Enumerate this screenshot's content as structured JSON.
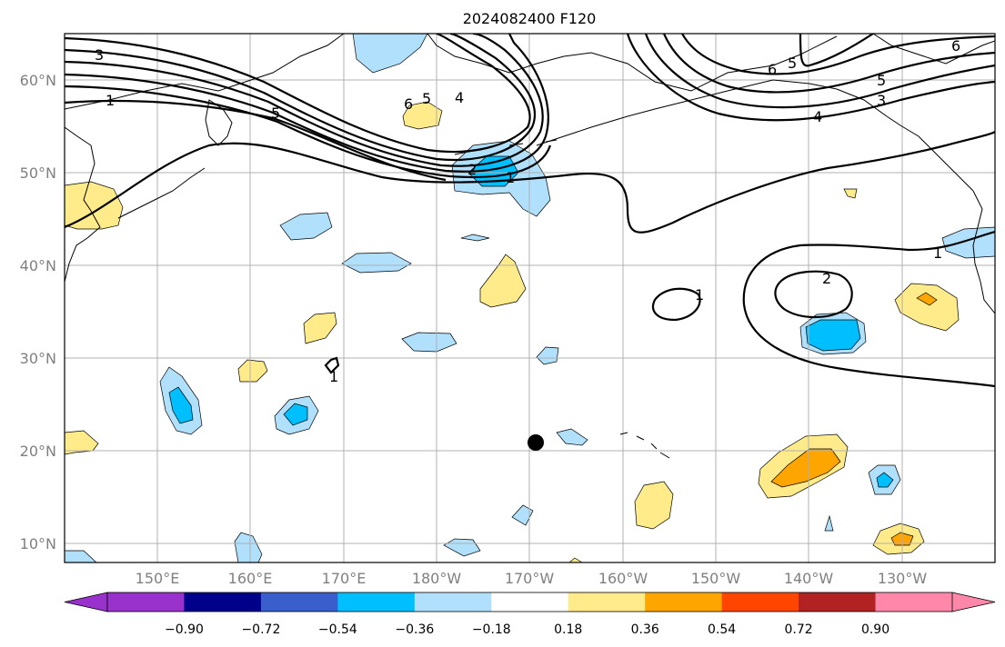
{
  "title": "2024082400 F120",
  "lat_labels": [
    "60°N",
    "50°N",
    "40°N",
    "30°N",
    "20°N",
    "10°N"
  ],
  "lon_labels": [
    "150°E",
    "160°E",
    "170°E",
    "180°W",
    "170°W",
    "160°W",
    "150°W",
    "140°W",
    "130°W"
  ],
  "colorbar": {
    "labels": [
      "−0.90",
      "−0.72",
      "−0.54",
      "−0.36",
      "−0.18",
      "0.18",
      "0.36",
      "0.54",
      "0.72",
      "0.90"
    ],
    "colors": [
      "#9932cc",
      "#00008b",
      "#3a5fcd",
      "#00bfff",
      "#b0e0fb",
      "#ffffff",
      "#ffeb8a",
      "#ffa500",
      "#ff4500",
      "#b22222",
      "#ff88aa"
    ]
  },
  "contour_labels": [
    "3",
    "1",
    "6",
    "5",
    "4",
    "2",
    "1",
    "6",
    "5",
    "4",
    "3",
    "5",
    "6",
    "2",
    "1",
    "1",
    "1",
    "5"
  ],
  "colors": {
    "light_blue": "#b0e0fb",
    "mid_blue": "#00bfff",
    "light_yellow": "#ffeb8a",
    "orange": "#ffa500"
  },
  "marker": "storm-center-dot"
}
